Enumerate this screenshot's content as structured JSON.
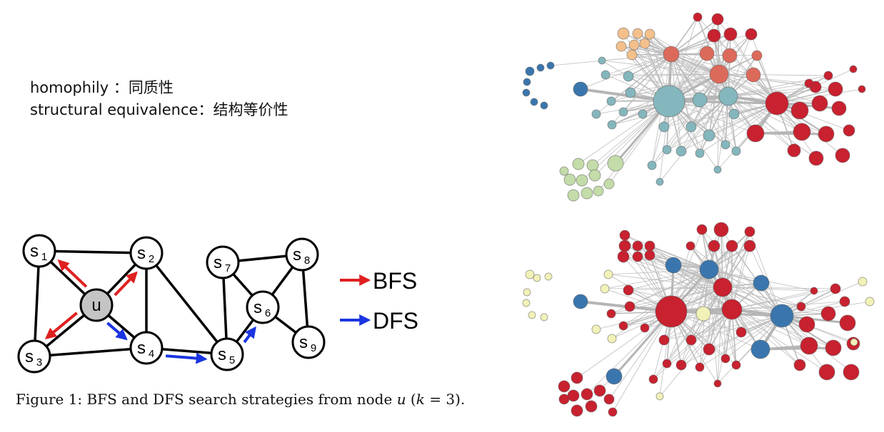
{
  "definitions": [
    {
      "term": "homophily",
      "separator": "：",
      "translation": "同质性"
    },
    {
      "term": "structural equivalence",
      "separator": "：",
      "translation": "结构等价性"
    }
  ],
  "diagram": {
    "nodes": [
      {
        "id": "u",
        "main": "u",
        "sub": ""
      },
      {
        "id": "s1",
        "main": "s",
        "sub": "1"
      },
      {
        "id": "s2",
        "main": "s",
        "sub": "2"
      },
      {
        "id": "s3",
        "main": "s",
        "sub": "3"
      },
      {
        "id": "s4",
        "main": "s",
        "sub": "4"
      },
      {
        "id": "s5",
        "main": "s",
        "sub": "5"
      },
      {
        "id": "s6",
        "main": "s",
        "sub": "6"
      },
      {
        "id": "s7",
        "main": "s",
        "sub": "7"
      },
      {
        "id": "s8",
        "main": "s",
        "sub": "8"
      },
      {
        "id": "s9",
        "main": "s",
        "sub": "9"
      }
    ],
    "edges": [
      [
        "s1",
        "s2"
      ],
      [
        "s1",
        "u"
      ],
      [
        "s1",
        "s3"
      ],
      [
        "s2",
        "u"
      ],
      [
        "s2",
        "s4"
      ],
      [
        "s2",
        "s5"
      ],
      [
        "u",
        "s3"
      ],
      [
        "u",
        "s4"
      ],
      [
        "s3",
        "s4"
      ],
      [
        "s4",
        "s5"
      ],
      [
        "s5",
        "s7"
      ],
      [
        "s5",
        "s6"
      ],
      [
        "s7",
        "s6"
      ],
      [
        "s7",
        "s8"
      ],
      [
        "s6",
        "s8"
      ],
      [
        "s6",
        "s9"
      ],
      [
        "s8",
        "s9"
      ]
    ],
    "bfs_arrows": [
      [
        "u",
        "s1"
      ],
      [
        "u",
        "s2"
      ],
      [
        "u",
        "s3"
      ]
    ],
    "dfs_arrows": [
      [
        "u",
        "s4"
      ],
      [
        "s4",
        "s5"
      ],
      [
        "s5",
        "s6"
      ]
    ],
    "legend": [
      {
        "label": "BFS",
        "color": "#e02020"
      },
      {
        "label": "DFS",
        "color": "#1a35e0"
      }
    ]
  },
  "caption": {
    "prefix": "Figure 1: BFS and DFS search strategies from node ",
    "var": "u",
    "paren_open": " (",
    "k": "k",
    "eq": " = 3",
    "suffix": ")."
  },
  "graph_colors": {
    "orange": "#f3c08c",
    "red": "#c8212f",
    "salmon": "#dc6a5b",
    "teal": "#84b6bd",
    "darkblue": "#3a76ad",
    "lightgreen": "#c3dca9",
    "paleyellow": "#f2f2b8"
  }
}
